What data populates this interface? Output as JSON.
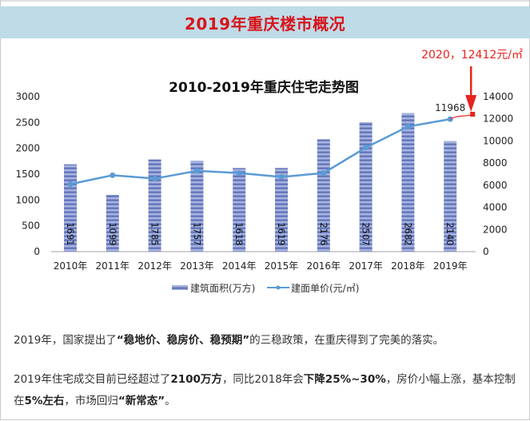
{
  "header": {
    "title": "2019年重庆楼市概况"
  },
  "annotation": {
    "text": "2020，12412元/㎡",
    "color": "#e8231d"
  },
  "colors": {
    "bar": "#6f83c2",
    "bar_light": "#b9c4e6",
    "line": "#5b9bd5",
    "header_bg": "#bedbe7",
    "title_red": "#d8141c"
  },
  "chart_data": {
    "type": "bar+line",
    "title": "2010-2019年重庆住宅走势图",
    "categories": [
      "2010年",
      "2011年",
      "2012年",
      "2013年",
      "2014年",
      "2015年",
      "2016年",
      "2017年",
      "2018年",
      "2019年"
    ],
    "series": [
      {
        "name": "建筑面积(万方)",
        "type": "bar",
        "axis": "left",
        "values": [
          1691,
          1099,
          1785,
          1757,
          1618,
          1619,
          2176,
          2507,
          2682,
          2140
        ]
      },
      {
        "name": "建面单价(元/㎡)",
        "type": "line",
        "axis": "right",
        "values": [
          6100,
          6900,
          6600,
          7300,
          7100,
          6750,
          7100,
          9400,
          11300,
          11968
        ]
      }
    ],
    "point_label": {
      "category": "2019年",
      "text": "11968"
    },
    "projection": {
      "x": "2020",
      "value": 12412,
      "label": "2020，12412元/㎡"
    },
    "left_axis": {
      "ylim": [
        0,
        3000
      ],
      "ticks": [
        "0",
        "500",
        "1000",
        "1500",
        "2000",
        "2500",
        "3000"
      ]
    },
    "right_axis": {
      "ylim": [
        0,
        14000
      ],
      "ticks": [
        "0",
        "2000",
        "4000",
        "6000",
        "8000",
        "10000",
        "12000",
        "14000"
      ]
    },
    "legend": {
      "position": "bottom"
    },
    "grid": false
  },
  "body": {
    "p1": {
      "a": "2019年，国家提出了",
      "b": "“稳地价、稳房价、稳预期”",
      "c": "的三稳政策，在重庆得到了完美的落实。"
    },
    "p2": {
      "a": "2019年住宅成交目前已经超过了",
      "b": "2100万方",
      "c": "，同比2018年会",
      "d": "下降25%~30%",
      "e": "，房价小幅上涨，基本控制在",
      "f": "5%左右",
      "g": "，市场回归",
      "h": "“新常态”",
      "i": "。"
    }
  }
}
